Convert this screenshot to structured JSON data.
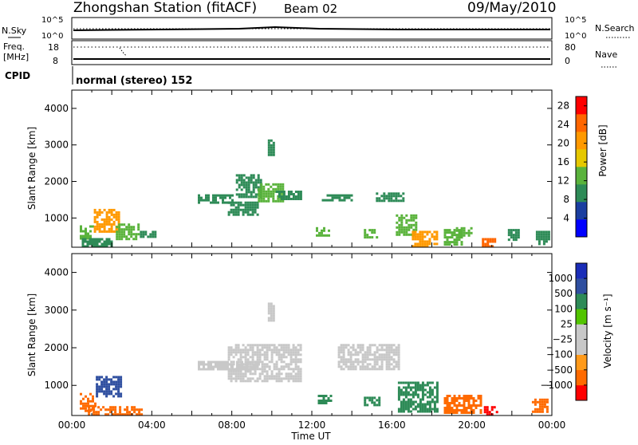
{
  "header": {
    "station": "Zhongshan Station (fitACF)",
    "beam": "Beam 02",
    "date": "09/May/2010"
  },
  "summary_panels": {
    "nsky_label": "N.Sky",
    "nsky_ticks": [
      "10^5",
      "10^0"
    ],
    "nsearch_label": "N.Search",
    "nsearch_ticks": [
      "10^5",
      "10^0"
    ],
    "freq_label_line1": "Freq.",
    "freq_label_line2": "[MHz]",
    "freq_ticks": [
      "18",
      "8"
    ],
    "nave_label": "Nave",
    "nave_ticks": [
      "80",
      "0"
    ],
    "cpid_label": "CPID",
    "cpid_text": "normal (stereo) 152"
  },
  "colors": {
    "power_scale": [
      "#0000ff",
      "#1a3ea0",
      "#2e8b57",
      "#5ab33c",
      "#e6c800",
      "#ff9900",
      "#ff6600",
      "#ff0000"
    ],
    "velocity_scale": [
      "#ff0000",
      "#ff6a00",
      "#ff9a1a",
      "#c8c8c8",
      "#c8c8c8",
      "#52c400",
      "#2e8b57",
      "#2f4fa0",
      "#1a2db8"
    ]
  },
  "chart_data": [
    {
      "type": "heatmap",
      "panel": "power",
      "ylabel": "Slant Range [km]",
      "yticks": [
        "1000",
        "2000",
        "3000",
        "4000"
      ],
      "ylim": [
        200,
        4500
      ],
      "xlim": [
        0,
        24
      ],
      "colorbar_label": "Power [dB]",
      "colorbar_ticks": [
        "4",
        "8",
        "12",
        "16",
        "20",
        "24",
        "28"
      ],
      "colorbar_range": [
        0,
        30
      ],
      "patches": [
        {
          "t0": 0.4,
          "t1": 1.0,
          "r0": 450,
          "r1": 800,
          "value": 14
        },
        {
          "t0": 0.5,
          "t1": 2.0,
          "r0": 250,
          "r1": 450,
          "value": 8
        },
        {
          "t0": 1.1,
          "t1": 2.3,
          "r0": 650,
          "r1": 1250,
          "value": 20
        },
        {
          "t0": 2.2,
          "t1": 3.3,
          "r0": 450,
          "r1": 850,
          "value": 12
        },
        {
          "t0": 3.4,
          "t1": 4.2,
          "r0": 500,
          "r1": 650,
          "value": 8
        },
        {
          "t0": 6.3,
          "t1": 8.0,
          "r0": 1450,
          "r1": 1650,
          "value": 8
        },
        {
          "t0": 7.8,
          "t1": 9.3,
          "r0": 1100,
          "r1": 1450,
          "value": 10
        },
        {
          "t0": 8.2,
          "t1": 9.4,
          "r0": 1600,
          "r1": 2200,
          "value": 9
        },
        {
          "t0": 9.3,
          "t1": 10.6,
          "r0": 1450,
          "r1": 1950,
          "value": 14
        },
        {
          "t0": 10.2,
          "t1": 11.5,
          "r0": 1500,
          "r1": 1750,
          "value": 8
        },
        {
          "t0": 9.8,
          "t1": 10.1,
          "r0": 2700,
          "r1": 3150,
          "value": 10
        },
        {
          "t0": 12.2,
          "t1": 12.9,
          "r0": 550,
          "r1": 750,
          "value": 12
        },
        {
          "t0": 12.5,
          "t1": 14.0,
          "r0": 1500,
          "r1": 1650,
          "value": 8
        },
        {
          "t0": 14.6,
          "t1": 15.3,
          "r0": 500,
          "r1": 700,
          "value": 13
        },
        {
          "t0": 15.2,
          "t1": 16.6,
          "r0": 1450,
          "r1": 1700,
          "value": 8
        },
        {
          "t0": 16.2,
          "t1": 17.2,
          "r0": 550,
          "r1": 1100,
          "value": 12
        },
        {
          "t0": 17.0,
          "t1": 18.3,
          "r0": 250,
          "r1": 650,
          "value": 22
        },
        {
          "t0": 18.6,
          "t1": 19.5,
          "r0": 300,
          "r1": 700,
          "value": 14
        },
        {
          "t0": 19.2,
          "t1": 20.0,
          "r0": 500,
          "r1": 750,
          "value": 12
        },
        {
          "t0": 20.5,
          "t1": 21.2,
          "r0": 250,
          "r1": 450,
          "value": 24
        },
        {
          "t0": 21.8,
          "t1": 22.3,
          "r0": 400,
          "r1": 700,
          "value": 9
        },
        {
          "t0": 23.2,
          "t1": 23.8,
          "r0": 300,
          "r1": 650,
          "value": 8
        }
      ]
    },
    {
      "type": "heatmap",
      "panel": "velocity",
      "ylabel": "Slant Range [km]",
      "yticks": [
        "1000",
        "2000",
        "3000",
        "4000"
      ],
      "ylim": [
        200,
        4500
      ],
      "xlim": [
        0,
        24
      ],
      "xlabel": "Time UT",
      "xticks": [
        "00:00",
        "04:00",
        "08:00",
        "12:00",
        "16:00",
        "20:00",
        "00:00"
      ],
      "colorbar_label": "Velocity [m s⁻¹]",
      "colorbar_ticks": [
        "1000",
        "500",
        "100",
        "25",
        "−25",
        "−100",
        "−500",
        "−1000"
      ],
      "patches": [
        {
          "t0": 0.4,
          "t1": 1.2,
          "r0": 350,
          "r1": 800,
          "value": -300
        },
        {
          "t0": 1.2,
          "t1": 2.4,
          "r0": 700,
          "r1": 1250,
          "value": 600
        },
        {
          "t0": 0.8,
          "t1": 3.5,
          "r0": 250,
          "r1": 450,
          "value": -200
        },
        {
          "t0": 6.3,
          "t1": 9.3,
          "r0": 1450,
          "r1": 1650,
          "value": 0
        },
        {
          "t0": 7.8,
          "t1": 11.5,
          "r0": 1100,
          "r1": 2100,
          "value": 0
        },
        {
          "t0": 9.8,
          "t1": 10.1,
          "r0": 2700,
          "r1": 3200,
          "value": 0
        },
        {
          "t0": 12.3,
          "t1": 12.9,
          "r0": 550,
          "r1": 750,
          "value": 300
        },
        {
          "t0": 13.3,
          "t1": 16.3,
          "r0": 1450,
          "r1": 2100,
          "value": 0
        },
        {
          "t0": 14.6,
          "t1": 15.4,
          "r0": 500,
          "r1": 700,
          "value": 400
        },
        {
          "t0": 16.3,
          "t1": 18.3,
          "r0": 300,
          "r1": 1100,
          "value": 300
        },
        {
          "t0": 18.6,
          "t1": 20.5,
          "r0": 300,
          "r1": 750,
          "value": -200
        },
        {
          "t0": 20.6,
          "t1": 21.3,
          "r0": 250,
          "r1": 450,
          "value": -800
        },
        {
          "t0": 23.0,
          "t1": 23.8,
          "r0": 300,
          "r1": 650,
          "value": -150
        }
      ]
    }
  ]
}
